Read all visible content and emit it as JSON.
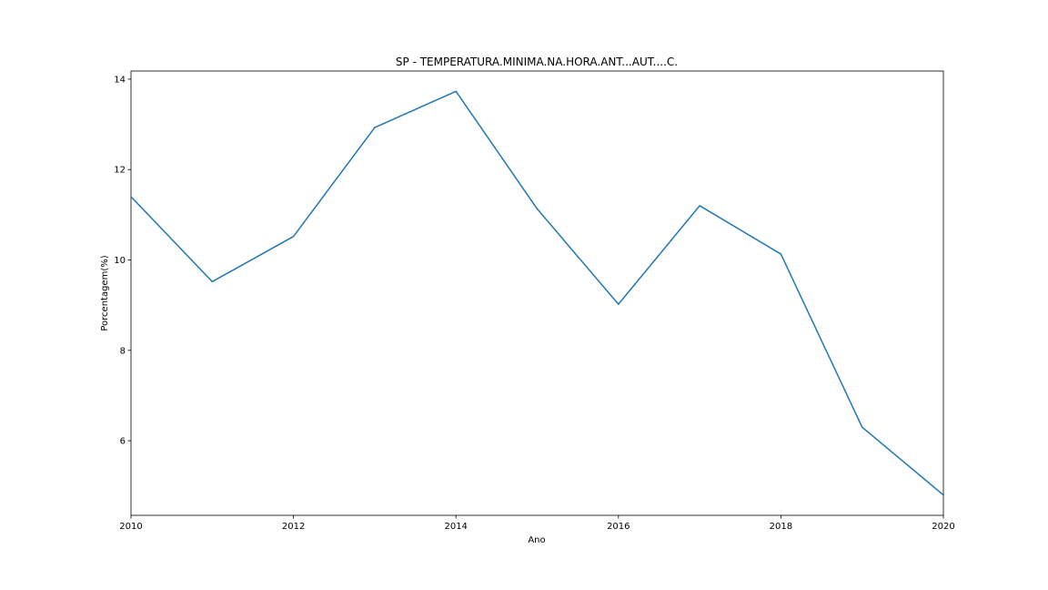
{
  "chart_data": {
    "type": "line",
    "title": "SP - TEMPERATURA.MINIMA.NA.HORA.ANT...AUT....C.",
    "xlabel": "Ano",
    "ylabel": "Porcentagem(%)",
    "x": [
      2010,
      2011,
      2012,
      2013,
      2014,
      2015,
      2016,
      2017,
      2018,
      2019,
      2020
    ],
    "series": [
      {
        "values": [
          11.4,
          9.52,
          10.52,
          12.93,
          13.73,
          11.13,
          9.02,
          11.2,
          10.13,
          6.3,
          4.8
        ],
        "color": "#1f77b4"
      }
    ],
    "xlim": [
      2010,
      2020
    ],
    "ylim": [
      4.35,
      14.18
    ],
    "xticks": [
      "2010",
      "2012",
      "2014",
      "2016",
      "2018",
      "2020"
    ],
    "yticks": [
      "6",
      "8",
      "10",
      "12",
      "14"
    ],
    "grid": false
  }
}
